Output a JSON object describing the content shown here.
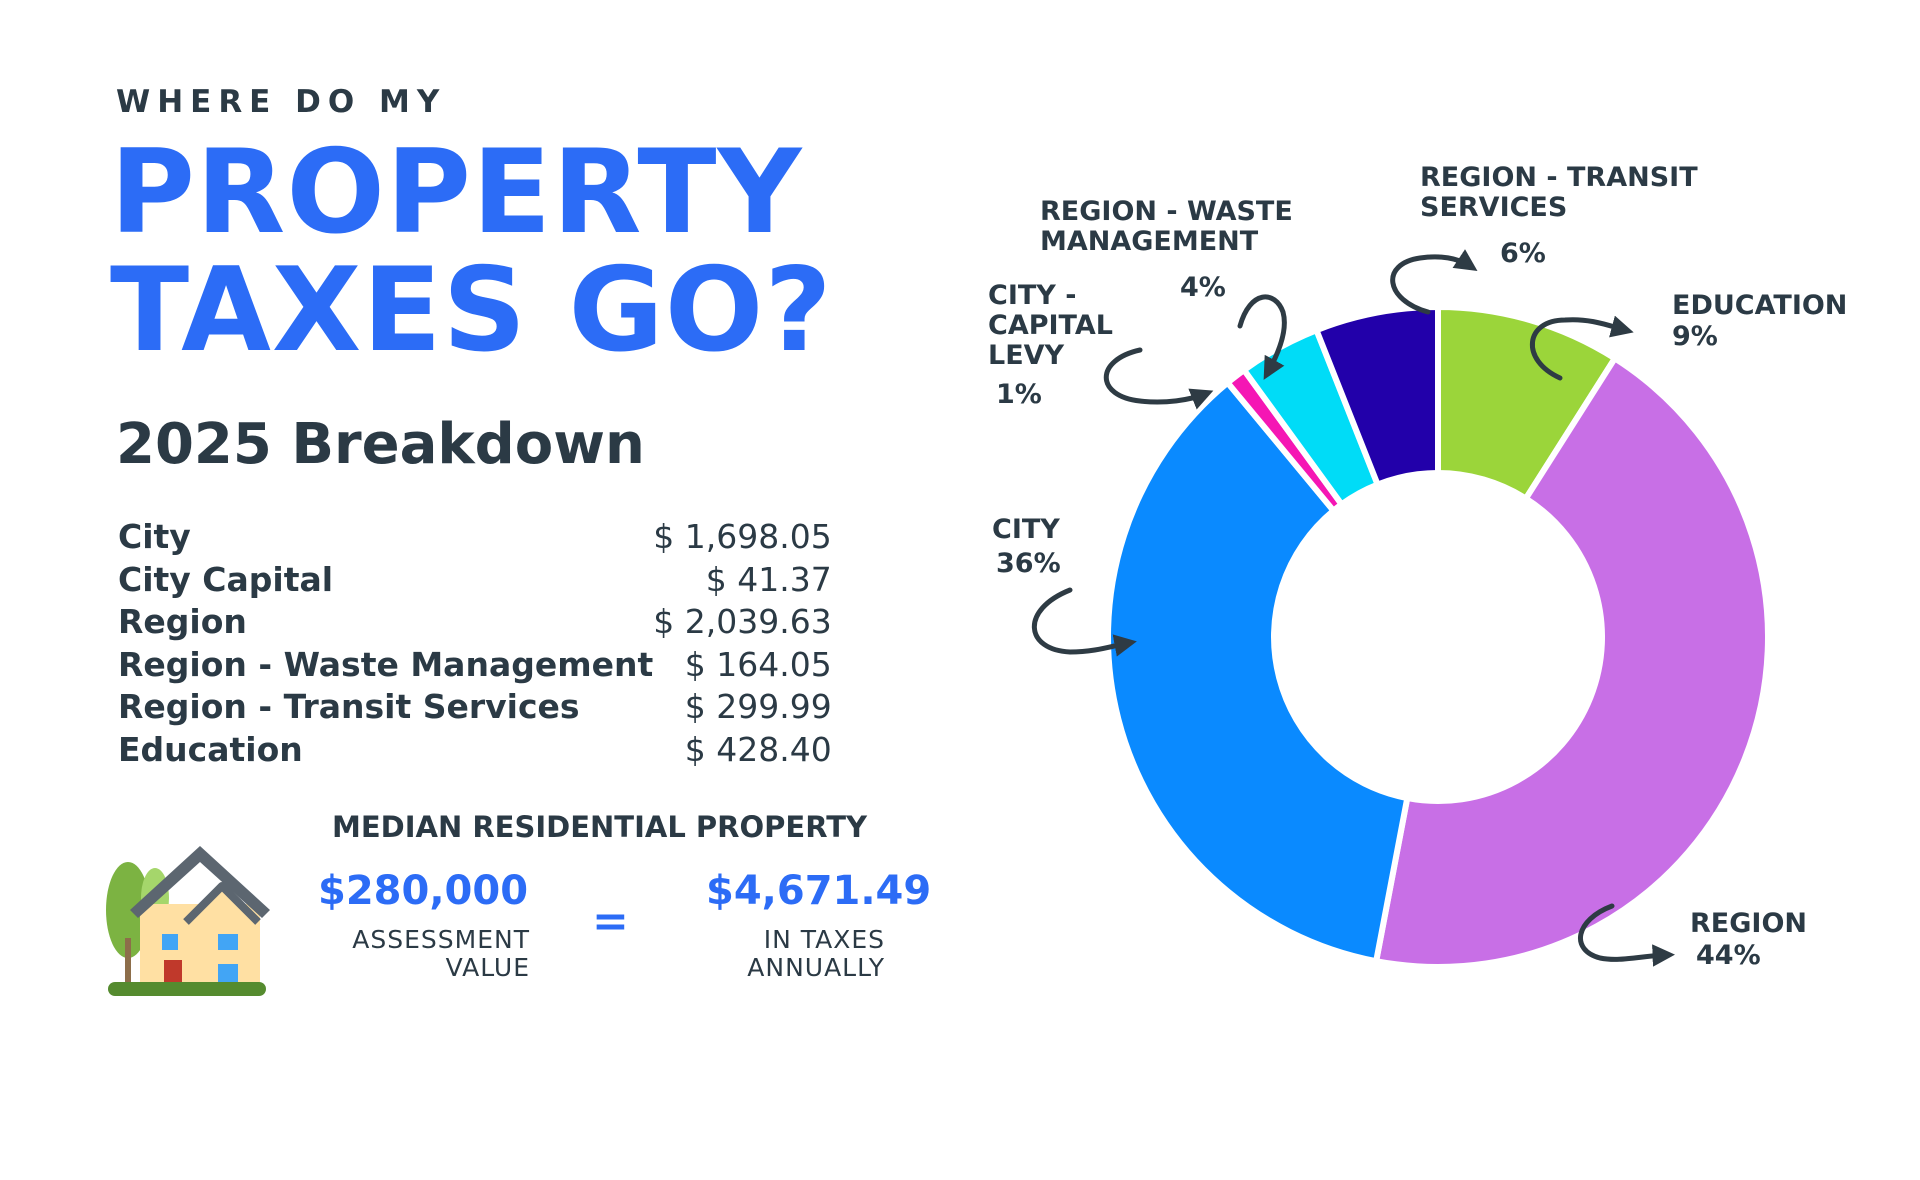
{
  "header": {
    "kicker": "WHERE DO MY",
    "title_line1": "PROPERTY",
    "title_line2": "TAXES GO?"
  },
  "breakdown": {
    "title": "2025 Breakdown",
    "rows": [
      {
        "label": "City",
        "amount": "$ 1,698.05"
      },
      {
        "label": "City Capital",
        "amount": "$ 41.37"
      },
      {
        "label": "Region",
        "amount": "$ 2,039.63"
      },
      {
        "label": "Region - Waste Management",
        "amount": "$ 164.05"
      },
      {
        "label": "Region - Transit Services",
        "amount": "$ 299.99"
      },
      {
        "label": "Education",
        "amount": "$ 428.40"
      }
    ]
  },
  "median": {
    "label": "MEDIAN RESIDENTIAL PROPERTY",
    "assessment_value": "$280,000",
    "assessment_caption_line1": "ASSESSMENT",
    "assessment_caption_line2": "VALUE",
    "equals": "=",
    "taxes_value": "$4,671.49",
    "taxes_caption_line1": "IN TAXES",
    "taxes_caption_line2": "ANNUALLY"
  },
  "chart_data": {
    "type": "pie",
    "donut": true,
    "slices": [
      {
        "label_lines": [
          "EDUCATION"
        ],
        "percent_label": "9%",
        "value": 9,
        "color": "#9bd53a"
      },
      {
        "label_lines": [
          "REGION"
        ],
        "percent_label": "44%",
        "value": 44,
        "color": "#c86fe6"
      },
      {
        "label_lines": [
          "CITY"
        ],
        "percent_label": "36%",
        "value": 36,
        "color": "#0a8aff"
      },
      {
        "label_lines": [
          "CITY -",
          "CAPITAL",
          "LEVY"
        ],
        "percent_label": "1%",
        "value": 1,
        "color": "#f516b4"
      },
      {
        "label_lines": [
          "REGION - WASTE",
          "MANAGEMENT"
        ],
        "percent_label": "4%",
        "value": 4,
        "color": "#00dcf7"
      },
      {
        "label_lines": [
          "REGION - TRANSIT",
          "SERVICES"
        ],
        "percent_label": "6%",
        "value": 6,
        "color": "#2200aa"
      }
    ]
  },
  "colors": {
    "accent": "#2c6cf6",
    "text": "#2b3a45",
    "arrow": "#2e3b44"
  }
}
